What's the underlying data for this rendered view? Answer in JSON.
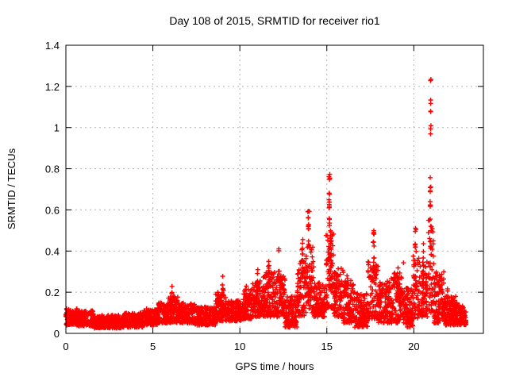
{
  "chart_data": {
    "type": "scatter",
    "title": "Day 108 of 2015, SRMTID for receiver rio1",
    "xlabel": "GPS time / hours",
    "ylabel": "SRMTID / TECUs",
    "xlim": [
      0,
      24
    ],
    "ylim": [
      0,
      1.4
    ],
    "xticks": [
      0,
      5,
      10,
      15,
      20
    ],
    "xtick_labels": [
      "0",
      "5",
      "10",
      "15",
      "20"
    ],
    "yticks": [
      0,
      0.2,
      0.4,
      0.6,
      0.8,
      1.0,
      1.2,
      1.4
    ],
    "ytick_labels": [
      "0",
      "0.2",
      "0.4",
      "0.6",
      "0.8",
      "1",
      "1.2",
      "1.4"
    ],
    "grid": true,
    "legend": "none",
    "marker": "+",
    "marker_color": "#ff0000",
    "grid_color": "#b3b3b3",
    "border_color": "#000000",
    "background_color": "#ffffff",
    "seed": 108,
    "band_segments": [
      [
        0.0,
        0.7,
        0.04,
        0.12,
        170
      ],
      [
        0.7,
        1.6,
        0.035,
        0.11,
        170
      ],
      [
        1.6,
        3.2,
        0.025,
        0.09,
        170
      ],
      [
        3.2,
        4.5,
        0.03,
        0.1,
        170
      ],
      [
        4.5,
        5.3,
        0.04,
        0.12,
        170
      ],
      [
        5.3,
        5.9,
        0.05,
        0.15,
        170
      ],
      [
        5.9,
        6.5,
        0.05,
        0.18,
        170
      ],
      [
        6.5,
        7.4,
        0.05,
        0.15,
        170
      ],
      [
        7.4,
        8.6,
        0.04,
        0.13,
        170
      ],
      [
        8.6,
        9.2,
        0.06,
        0.2,
        170
      ],
      [
        9.2,
        10.2,
        0.06,
        0.16,
        170
      ],
      [
        10.2,
        10.7,
        0.07,
        0.22,
        170
      ],
      [
        10.7,
        11.3,
        0.08,
        0.26,
        170
      ],
      [
        11.3,
        12.0,
        0.08,
        0.3,
        170
      ],
      [
        12.0,
        12.6,
        0.08,
        0.28,
        170
      ],
      [
        12.6,
        13.3,
        0.03,
        0.18,
        170
      ],
      [
        13.3,
        13.8,
        0.08,
        0.35,
        160
      ],
      [
        13.8,
        14.25,
        0.1,
        0.42,
        160
      ],
      [
        14.25,
        14.95,
        0.08,
        0.25,
        170
      ],
      [
        14.95,
        15.4,
        0.12,
        0.5,
        160
      ],
      [
        15.4,
        15.95,
        0.08,
        0.32,
        170
      ],
      [
        15.95,
        16.55,
        0.05,
        0.26,
        170
      ],
      [
        16.55,
        17.35,
        0.03,
        0.2,
        170
      ],
      [
        17.35,
        17.95,
        0.07,
        0.35,
        160
      ],
      [
        17.95,
        18.7,
        0.05,
        0.25,
        170
      ],
      [
        18.7,
        19.35,
        0.05,
        0.3,
        170
      ],
      [
        19.35,
        19.95,
        0.03,
        0.22,
        170
      ],
      [
        19.95,
        20.35,
        0.07,
        0.38,
        160
      ],
      [
        20.35,
        20.8,
        0.08,
        0.35,
        160
      ],
      [
        20.8,
        21.15,
        0.1,
        0.55,
        160
      ],
      [
        21.15,
        21.75,
        0.05,
        0.3,
        170
      ],
      [
        21.75,
        22.45,
        0.04,
        0.18,
        170
      ],
      [
        22.45,
        23.0,
        0.04,
        0.15,
        170
      ]
    ],
    "spikes": [
      [
        6.1,
        0.13,
        0.24,
        8,
        0.06
      ],
      [
        9.0,
        0.15,
        0.28,
        10,
        0.08
      ],
      [
        10.35,
        0.15,
        0.25,
        6,
        0.06
      ],
      [
        11.0,
        0.2,
        0.31,
        8,
        0.08
      ],
      [
        11.65,
        0.24,
        0.35,
        9,
        0.08
      ],
      [
        12.25,
        0.4,
        0.42,
        2,
        0.02
      ],
      [
        12.3,
        0.25,
        0.32,
        6,
        0.1
      ],
      [
        13.6,
        0.28,
        0.47,
        12,
        0.07
      ],
      [
        13.95,
        0.4,
        0.6,
        14,
        0.06
      ],
      [
        15.15,
        0.5,
        0.78,
        16,
        0.05
      ],
      [
        15.2,
        0.32,
        0.52,
        12,
        0.09
      ],
      [
        16.2,
        0.18,
        0.3,
        6,
        0.1
      ],
      [
        17.7,
        0.3,
        0.52,
        12,
        0.07
      ],
      [
        18.45,
        0.2,
        0.27,
        5,
        0.08
      ],
      [
        19.05,
        0.24,
        0.33,
        7,
        0.09
      ],
      [
        19.4,
        0.34,
        0.36,
        1,
        0.01
      ],
      [
        20.1,
        0.33,
        0.52,
        9,
        0.06
      ],
      [
        20.55,
        0.28,
        0.45,
        7,
        0.08
      ],
      [
        20.95,
        0.55,
        0.78,
        10,
        0.04
      ],
      [
        20.97,
        0.95,
        1.27,
        9,
        0.03
      ],
      [
        21.45,
        0.18,
        0.27,
        5,
        0.08
      ],
      [
        21.95,
        0.16,
        0.22,
        4,
        0.08
      ]
    ]
  }
}
